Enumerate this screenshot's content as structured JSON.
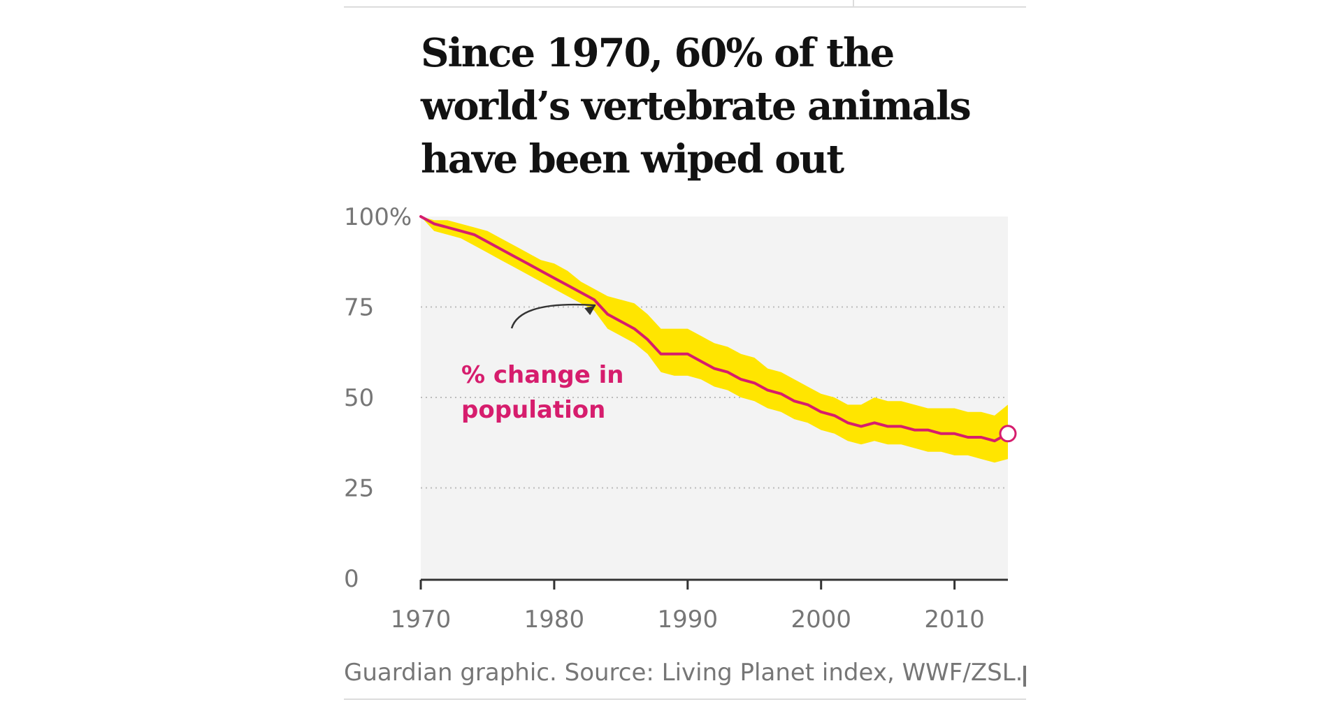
{
  "header": {
    "title_lines": [
      "Since 1970, 60% of the",
      "world’s vertebrate animals",
      "have been wiped out"
    ]
  },
  "footer": {
    "source": "Guardian graphic. Source: Living Planet index, WWF/ZSL."
  },
  "colors": {
    "line": "#d61d6d",
    "band": "#ffe500",
    "plot_background": "#f3f3f3",
    "axis": "#333333",
    "tick_label": "#767676",
    "gridline": "#bbbbbb"
  },
  "chart_data": {
    "type": "line",
    "title": "Since 1970, 60% of the world’s vertebrate animals have been wiped out",
    "xlabel": "",
    "ylabel": "",
    "xlim": [
      1970,
      2014
    ],
    "ylim": [
      0,
      100
    ],
    "x_ticks": [
      1970,
      1980,
      1990,
      2000,
      2010
    ],
    "x_tick_labels": [
      "1970",
      "1980",
      "1990",
      "2000",
      "2010"
    ],
    "y_ticks": [
      0,
      25,
      50,
      75,
      100
    ],
    "y_tick_labels": [
      "0",
      "25",
      "50",
      "75",
      "100%"
    ],
    "grid": "horizontal dotted",
    "annotation": {
      "text_lines": [
        "% change in",
        "population"
      ],
      "points_to_x": 1983,
      "points_to_y": 77
    },
    "end_marker": {
      "x": 2014,
      "y": 40
    },
    "series": [
      {
        "x": [
          1970,
          1971,
          1972,
          1973,
          1974,
          1975,
          1976,
          1977,
          1978,
          1979,
          1980,
          1981,
          1982,
          1983,
          1984,
          1985,
          1986,
          1987,
          1988,
          1989,
          1990,
          1991,
          1992,
          1993,
          1994,
          1995,
          1996,
          1997,
          1998,
          1999,
          2000,
          2001,
          2002,
          2003,
          2004,
          2005,
          2006,
          2007,
          2008,
          2009,
          2010,
          2011,
          2012,
          2013,
          2014
        ],
        "values": [
          100,
          98,
          97,
          96,
          95,
          93,
          91,
          89,
          87,
          85,
          83,
          81,
          79,
          77,
          73,
          71,
          69,
          66,
          62,
          62,
          62,
          60,
          58,
          57,
          55,
          54,
          52,
          51,
          49,
          48,
          46,
          45,
          43,
          42,
          43,
          42,
          42,
          41,
          41,
          40,
          40,
          39,
          39,
          38,
          40
        ],
        "lower": [
          100,
          96,
          95,
          94,
          92,
          90,
          88,
          86,
          84,
          82,
          80,
          78,
          76,
          74,
          69,
          67,
          65,
          62,
          57,
          56,
          56,
          55,
          53,
          52,
          50,
          49,
          47,
          46,
          44,
          43,
          41,
          40,
          38,
          37,
          38,
          37,
          37,
          36,
          35,
          35,
          34,
          34,
          33,
          32,
          33
        ],
        "upper": [
          100,
          99,
          99,
          98,
          97,
          96,
          94,
          92,
          90,
          88,
          87,
          85,
          82,
          80,
          78,
          77,
          76,
          73,
          69,
          69,
          69,
          67,
          65,
          64,
          62,
          61,
          58,
          57,
          55,
          53,
          51,
          50,
          48,
          48,
          50,
          49,
          49,
          48,
          47,
          47,
          47,
          46,
          46,
          45,
          48
        ]
      }
    ]
  }
}
